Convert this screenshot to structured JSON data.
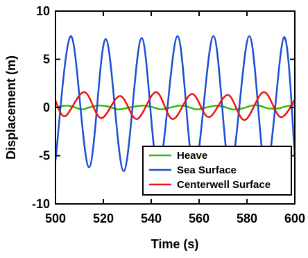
{
  "chart_data": {
    "type": "line",
    "title": "",
    "xlabel": "Time  (s)",
    "ylabel": "Displacement (m)",
    "xlim": [
      500,
      600
    ],
    "ylim": [
      -10,
      10
    ],
    "xticks": [
      500,
      520,
      540,
      560,
      580,
      600
    ],
    "yticks": [
      -10,
      -5,
      0,
      5,
      10
    ],
    "grid": false,
    "legend_position": "bottom-right",
    "series": [
      {
        "name": "Heave",
        "color": "#33bb00",
        "x": [
          500,
          504,
          507,
          511,
          514,
          518,
          522,
          526,
          529,
          533,
          537,
          541,
          544,
          548,
          552,
          555,
          559,
          563,
          567,
          570,
          574,
          578,
          582,
          585,
          589,
          593,
          596,
          600
        ],
        "y": [
          0.0,
          0.2,
          0.1,
          -0.2,
          0.0,
          0.2,
          0.1,
          -0.2,
          -0.1,
          0.1,
          0.2,
          0.0,
          -0.2,
          0.0,
          0.2,
          0.1,
          -0.2,
          0.0,
          0.2,
          0.1,
          -0.2,
          -0.1,
          0.2,
          0.2,
          -0.1,
          -0.1,
          0.1,
          0.3
        ]
      },
      {
        "name": "Sea Surface",
        "color": "#1a4fd6",
        "x": [
          500,
          506.5,
          514,
          521,
          528.5,
          536,
          543,
          551,
          558,
          566,
          573,
          581,
          588,
          595.5,
          600
        ],
        "y": [
          -5.5,
          7.4,
          -6.2,
          7.1,
          -6.6,
          7.2,
          -6.4,
          7.4,
          -6.5,
          7.4,
          -6.4,
          7.4,
          -6.5,
          7.3,
          -5.0
        ]
      },
      {
        "name": "Centerwell Surface",
        "color": "#ee1111",
        "x": [
          500,
          504,
          512,
          519,
          527,
          534,
          542,
          549,
          557,
          564,
          572,
          579,
          587,
          594,
          600
        ],
        "y": [
          0.7,
          -0.9,
          1.6,
          -1.1,
          1.2,
          -1.2,
          1.6,
          -1.2,
          1.4,
          -1.0,
          1.3,
          -1.3,
          1.6,
          -1.0,
          0.8
        ]
      }
    ]
  }
}
